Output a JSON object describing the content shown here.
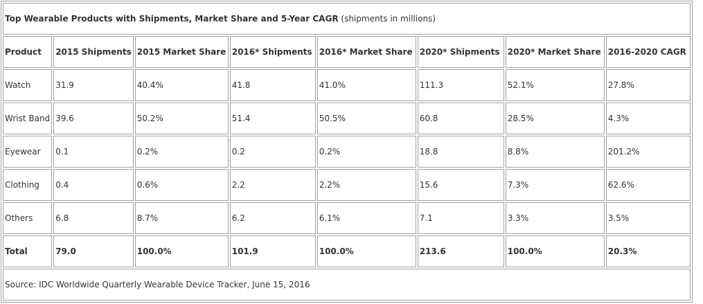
{
  "table": {
    "title": "Top Wearable Products with Shipments, Market Share and 5-Year CAGR",
    "title_note": "(shipments in millions)",
    "headers": [
      "Product",
      "2015 Shipments",
      "2015 Market Share",
      "2016* Shipments",
      "2016* Market Share",
      "2020* Shipments",
      "2020* Market Share",
      "2016-2020 CAGR"
    ],
    "rows": [
      [
        "Watch",
        "31.9",
        "40.4%",
        "41.8",
        "41.0%",
        "111.3",
        "52.1%",
        "27.8%"
      ],
      [
        "Wrist Band",
        "39.6",
        "50.2%",
        "51.4",
        "50.5%",
        "60.8",
        "28.5%",
        "4.3%"
      ],
      [
        "Eyewear",
        "0.1",
        "0.2%",
        "0.2",
        "0.2%",
        "18.8",
        "8.8%",
        "201.2%"
      ],
      [
        "Clothing",
        "0.4",
        "0.6%",
        "2.2",
        "2.2%",
        "15.6",
        "7.3%",
        "62.6%"
      ],
      [
        "Others",
        "6.8",
        "8.7%",
        "6.2",
        "6.1%",
        "7.1",
        "3.3%",
        "3.5%"
      ]
    ],
    "total": [
      "Total",
      "79.0",
      "100.0%",
      "101.9",
      "100.0%",
      "213.6",
      "100.0%",
      "20.3%"
    ],
    "source": "Source: IDC Worldwide Quarterly Wearable Device Tracker, June 15, 2016"
  }
}
